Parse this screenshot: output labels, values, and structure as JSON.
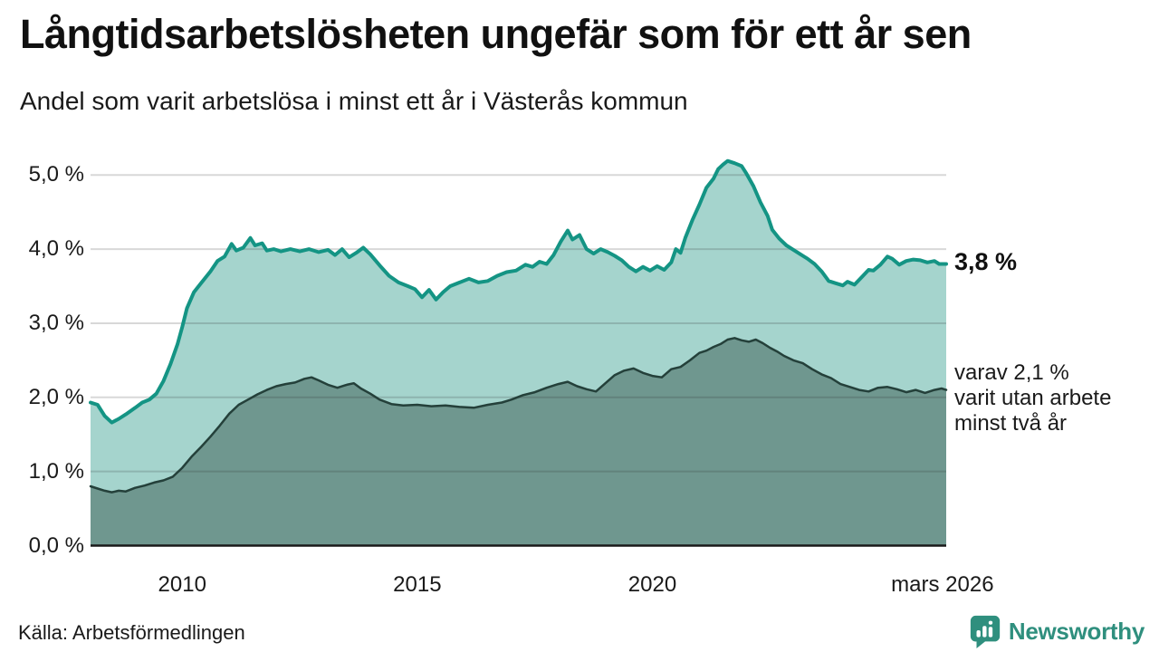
{
  "header": {
    "title": "Långtidsarbetslösheten ungefär som för ett år sen",
    "subtitle": "Andel som varit arbetslösa i minst ett år i Västerås kommun"
  },
  "annotations": {
    "latest_total": "3,8 %",
    "latest_two_years_lines": [
      "varav 2,1 %",
      "varit utan arbete",
      "minst två år"
    ]
  },
  "footer": {
    "source": "Källa: Arbetsförmedlingen",
    "logo_text": "Newsworthy"
  },
  "colors": {
    "line_total": "#149484",
    "fill_total": "#a5d4cd",
    "line_two_years": "#24403a",
    "fill_two_years": "#6f978f",
    "gridline": "rgba(40,40,40,0.18)",
    "axis": "#1a1a1a",
    "brand_teal": "#2f8f7e",
    "text": "#1a1a1a"
  },
  "chart_data": {
    "type": "area",
    "title": "Långtidsarbetslösheten ungefär som för ett år sen",
    "subtitle": "Andel som varit arbetslösa i minst ett år i Västerås kommun",
    "unit": "%",
    "grid": true,
    "legend_position": "none",
    "x_axis": {
      "range": [
        2008.05,
        2026.25
      ],
      "ticks": [
        {
          "label": "2010",
          "x": 2010
        },
        {
          "label": "2015",
          "x": 2015
        },
        {
          "label": "2020",
          "x": 2020
        },
        {
          "label": "mars 2026",
          "x": 2026.17
        }
      ]
    },
    "y_axis": {
      "range": [
        0,
        5.4
      ],
      "ticks": [
        {
          "label": "5,0 %",
          "value": 5.0
        },
        {
          "label": "4,0 %",
          "value": 4.0
        },
        {
          "label": "3,0 %",
          "value": 3.0
        },
        {
          "label": "2,0 %",
          "value": 2.0
        },
        {
          "label": "1,0 %",
          "value": 1.0
        },
        {
          "label": "0,0 %",
          "value": 0.0
        }
      ]
    },
    "series": [
      {
        "name": "Andel som varit arbetslösa i minst ett år",
        "latest_value": 3.8,
        "latest_label": "3,8 %",
        "points": [
          [
            2008.05,
            1.93
          ],
          [
            2008.2,
            1.9
          ],
          [
            2008.35,
            1.75
          ],
          [
            2008.5,
            1.66
          ],
          [
            2008.65,
            1.71
          ],
          [
            2008.8,
            1.77
          ],
          [
            2009.0,
            1.86
          ],
          [
            2009.15,
            1.93
          ],
          [
            2009.3,
            1.97
          ],
          [
            2009.45,
            2.05
          ],
          [
            2009.6,
            2.22
          ],
          [
            2009.75,
            2.45
          ],
          [
            2009.9,
            2.72
          ],
          [
            2010.0,
            2.95
          ],
          [
            2010.1,
            3.2
          ],
          [
            2010.25,
            3.42
          ],
          [
            2010.4,
            3.54
          ],
          [
            2010.6,
            3.7
          ],
          [
            2010.75,
            3.84
          ],
          [
            2010.9,
            3.9
          ],
          [
            2011.05,
            4.07
          ],
          [
            2011.15,
            3.98
          ],
          [
            2011.3,
            4.02
          ],
          [
            2011.45,
            4.15
          ],
          [
            2011.55,
            4.05
          ],
          [
            2011.7,
            4.08
          ],
          [
            2011.8,
            3.98
          ],
          [
            2011.95,
            4.0
          ],
          [
            2012.1,
            3.97
          ],
          [
            2012.3,
            4.0
          ],
          [
            2012.5,
            3.97
          ],
          [
            2012.7,
            4.0
          ],
          [
            2012.9,
            3.96
          ],
          [
            2013.1,
            3.99
          ],
          [
            2013.25,
            3.92
          ],
          [
            2013.4,
            4.0
          ],
          [
            2013.55,
            3.89
          ],
          [
            2013.7,
            3.95
          ],
          [
            2013.85,
            4.02
          ],
          [
            2014.0,
            3.93
          ],
          [
            2014.2,
            3.78
          ],
          [
            2014.4,
            3.64
          ],
          [
            2014.6,
            3.55
          ],
          [
            2014.8,
            3.5
          ],
          [
            2014.95,
            3.46
          ],
          [
            2015.1,
            3.35
          ],
          [
            2015.25,
            3.45
          ],
          [
            2015.4,
            3.32
          ],
          [
            2015.55,
            3.42
          ],
          [
            2015.7,
            3.5
          ],
          [
            2015.9,
            3.55
          ],
          [
            2016.1,
            3.6
          ],
          [
            2016.3,
            3.55
          ],
          [
            2016.5,
            3.57
          ],
          [
            2016.7,
            3.64
          ],
          [
            2016.9,
            3.69
          ],
          [
            2017.1,
            3.71
          ],
          [
            2017.3,
            3.79
          ],
          [
            2017.45,
            3.76
          ],
          [
            2017.6,
            3.83
          ],
          [
            2017.75,
            3.8
          ],
          [
            2017.9,
            3.92
          ],
          [
            2018.05,
            4.1
          ],
          [
            2018.2,
            4.25
          ],
          [
            2018.3,
            4.13
          ],
          [
            2018.45,
            4.19
          ],
          [
            2018.6,
            4.0
          ],
          [
            2018.75,
            3.94
          ],
          [
            2018.9,
            4.0
          ],
          [
            2019.05,
            3.96
          ],
          [
            2019.2,
            3.91
          ],
          [
            2019.35,
            3.85
          ],
          [
            2019.5,
            3.76
          ],
          [
            2019.65,
            3.7
          ],
          [
            2019.8,
            3.76
          ],
          [
            2019.95,
            3.71
          ],
          [
            2020.1,
            3.77
          ],
          [
            2020.25,
            3.72
          ],
          [
            2020.4,
            3.82
          ],
          [
            2020.5,
            4.0
          ],
          [
            2020.6,
            3.95
          ],
          [
            2020.7,
            4.15
          ],
          [
            2020.85,
            4.39
          ],
          [
            2021.0,
            4.6
          ],
          [
            2021.15,
            4.83
          ],
          [
            2021.3,
            4.95
          ],
          [
            2021.4,
            5.08
          ],
          [
            2021.5,
            5.14
          ],
          [
            2021.6,
            5.19
          ],
          [
            2021.75,
            5.16
          ],
          [
            2021.9,
            5.12
          ],
          [
            2022.0,
            5.02
          ],
          [
            2022.15,
            4.85
          ],
          [
            2022.3,
            4.63
          ],
          [
            2022.45,
            4.45
          ],
          [
            2022.55,
            4.26
          ],
          [
            2022.7,
            4.14
          ],
          [
            2022.85,
            4.05
          ],
          [
            2023.0,
            3.99
          ],
          [
            2023.15,
            3.93
          ],
          [
            2023.3,
            3.87
          ],
          [
            2023.45,
            3.8
          ],
          [
            2023.6,
            3.7
          ],
          [
            2023.75,
            3.57
          ],
          [
            2023.9,
            3.54
          ],
          [
            2024.05,
            3.51
          ],
          [
            2024.15,
            3.56
          ],
          [
            2024.3,
            3.52
          ],
          [
            2024.45,
            3.62
          ],
          [
            2024.6,
            3.72
          ],
          [
            2024.7,
            3.71
          ],
          [
            2024.85,
            3.79
          ],
          [
            2025.0,
            3.9
          ],
          [
            2025.1,
            3.87
          ],
          [
            2025.25,
            3.79
          ],
          [
            2025.4,
            3.84
          ],
          [
            2025.55,
            3.86
          ],
          [
            2025.7,
            3.85
          ],
          [
            2025.85,
            3.82
          ],
          [
            2026.0,
            3.84
          ],
          [
            2026.1,
            3.8
          ],
          [
            2026.25,
            3.8
          ]
        ]
      },
      {
        "name": "varav utan arbete minst två år",
        "latest_value": 2.1,
        "latest_label": "varav 2,1 % varit utan arbete minst två år",
        "points": [
          [
            2008.05,
            0.8
          ],
          [
            2008.2,
            0.77
          ],
          [
            2008.35,
            0.74
          ],
          [
            2008.5,
            0.72
          ],
          [
            2008.65,
            0.74
          ],
          [
            2008.8,
            0.73
          ],
          [
            2009.0,
            0.78
          ],
          [
            2009.2,
            0.81
          ],
          [
            2009.4,
            0.85
          ],
          [
            2009.6,
            0.88
          ],
          [
            2009.8,
            0.93
          ],
          [
            2010.0,
            1.05
          ],
          [
            2010.2,
            1.2
          ],
          [
            2010.4,
            1.33
          ],
          [
            2010.6,
            1.47
          ],
          [
            2010.8,
            1.62
          ],
          [
            2011.0,
            1.78
          ],
          [
            2011.2,
            1.9
          ],
          [
            2011.4,
            1.97
          ],
          [
            2011.6,
            2.04
          ],
          [
            2011.8,
            2.1
          ],
          [
            2012.0,
            2.15
          ],
          [
            2012.2,
            2.18
          ],
          [
            2012.4,
            2.2
          ],
          [
            2012.6,
            2.25
          ],
          [
            2012.75,
            2.27
          ],
          [
            2012.9,
            2.23
          ],
          [
            2013.1,
            2.17
          ],
          [
            2013.3,
            2.13
          ],
          [
            2013.5,
            2.17
          ],
          [
            2013.65,
            2.19
          ],
          [
            2013.8,
            2.12
          ],
          [
            2014.0,
            2.05
          ],
          [
            2014.2,
            1.97
          ],
          [
            2014.45,
            1.91
          ],
          [
            2014.7,
            1.89
          ],
          [
            2015.0,
            1.9
          ],
          [
            2015.3,
            1.88
          ],
          [
            2015.6,
            1.89
          ],
          [
            2015.9,
            1.87
          ],
          [
            2016.2,
            1.86
          ],
          [
            2016.5,
            1.9
          ],
          [
            2016.8,
            1.93
          ],
          [
            2017.0,
            1.97
          ],
          [
            2017.25,
            2.03
          ],
          [
            2017.5,
            2.07
          ],
          [
            2017.75,
            2.13
          ],
          [
            2018.0,
            2.18
          ],
          [
            2018.2,
            2.21
          ],
          [
            2018.4,
            2.15
          ],
          [
            2018.6,
            2.11
          ],
          [
            2018.8,
            2.08
          ],
          [
            2019.0,
            2.19
          ],
          [
            2019.2,
            2.3
          ],
          [
            2019.4,
            2.36
          ],
          [
            2019.6,
            2.39
          ],
          [
            2019.8,
            2.33
          ],
          [
            2020.0,
            2.29
          ],
          [
            2020.2,
            2.27
          ],
          [
            2020.4,
            2.38
          ],
          [
            2020.6,
            2.41
          ],
          [
            2020.8,
            2.5
          ],
          [
            2021.0,
            2.6
          ],
          [
            2021.15,
            2.63
          ],
          [
            2021.3,
            2.68
          ],
          [
            2021.45,
            2.72
          ],
          [
            2021.6,
            2.78
          ],
          [
            2021.75,
            2.8
          ],
          [
            2021.9,
            2.77
          ],
          [
            2022.05,
            2.75
          ],
          [
            2022.2,
            2.78
          ],
          [
            2022.35,
            2.73
          ],
          [
            2022.5,
            2.67
          ],
          [
            2022.65,
            2.62
          ],
          [
            2022.8,
            2.56
          ],
          [
            2023.0,
            2.5
          ],
          [
            2023.2,
            2.46
          ],
          [
            2023.4,
            2.38
          ],
          [
            2023.6,
            2.31
          ],
          [
            2023.8,
            2.26
          ],
          [
            2024.0,
            2.18
          ],
          [
            2024.2,
            2.14
          ],
          [
            2024.4,
            2.1
          ],
          [
            2024.6,
            2.08
          ],
          [
            2024.8,
            2.13
          ],
          [
            2025.0,
            2.14
          ],
          [
            2025.2,
            2.11
          ],
          [
            2025.4,
            2.07
          ],
          [
            2025.6,
            2.1
          ],
          [
            2025.8,
            2.06
          ],
          [
            2026.0,
            2.1
          ],
          [
            2026.15,
            2.12
          ],
          [
            2026.25,
            2.1
          ]
        ]
      }
    ]
  }
}
